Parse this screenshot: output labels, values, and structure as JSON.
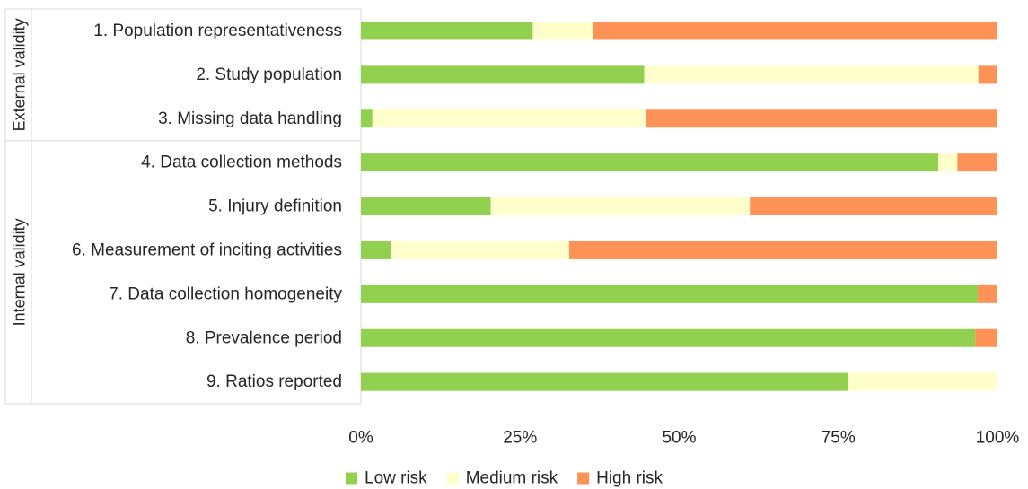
{
  "chart_data": {
    "type": "bar",
    "orientation": "horizontal",
    "stacked": true,
    "title": "",
    "xlabel": "",
    "ylabel": "",
    "xlim": [
      0,
      100
    ],
    "ticks": [
      "0%",
      "25%",
      "50%",
      "75%",
      "100%"
    ],
    "tick_values": [
      0,
      25,
      50,
      75,
      100
    ],
    "grid": false,
    "legend_position": "bottom",
    "groups": [
      {
        "label": "External validity",
        "categories": [
          0,
          1,
          2
        ]
      },
      {
        "label": "Internal validity",
        "categories": [
          3,
          4,
          5,
          6,
          7,
          8
        ]
      }
    ],
    "categories": [
      "1. Population representativeness",
      "2. Study population",
      "3. Missing data handling",
      "4. Data collection methods",
      "5. Injury definition",
      "6. Measurement of inciting activities",
      "7. Data collection homogeneity",
      "8. Prevalence period",
      "9. Ratios reported"
    ],
    "series": [
      {
        "name": "Low risk",
        "color": "#92d050",
        "values": [
          27.0,
          44.5,
          1.8,
          90.7,
          20.4,
          4.7,
          96.9,
          96.5,
          76.6
        ]
      },
      {
        "name": "Medium risk",
        "color": "#ffffcc",
        "values": [
          9.5,
          52.5,
          43.0,
          3.0,
          40.7,
          28.0,
          0.0,
          0.0,
          23.4
        ]
      },
      {
        "name": "High risk",
        "color": "#ff9257",
        "values": [
          63.5,
          3.0,
          55.2,
          6.3,
          38.9,
          67.3,
          3.1,
          3.5,
          0.0
        ]
      }
    ]
  }
}
